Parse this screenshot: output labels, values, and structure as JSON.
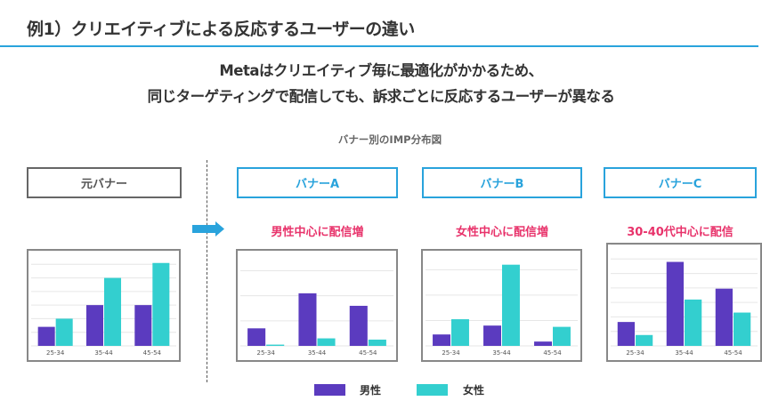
{
  "title": "例1）クリエイティブによる反応するユーザーの違い",
  "subtitle_lines": [
    "Metaはクリエイティブ毎に最適化がかかるため、",
    "同じターゲティングで配信しても、訴求ごとに反応するユーザーが異なる"
  ],
  "caption": "バナー別のIMP分布図",
  "banners": [
    {
      "label": "元バナー",
      "note": ""
    },
    {
      "label": "バナーA",
      "note": "男性中心に配信増"
    },
    {
      "label": "バナーB",
      "note": "女性中心に配信増"
    },
    {
      "label": "バナーC",
      "note": "30-40代中心に配信"
    }
  ],
  "icons": {
    "arrow": "arrow-right-icon"
  },
  "colors": {
    "male": "#5b3bbf",
    "female": "#33cfcf",
    "accent": "#29a3dc",
    "highlight": "#e8336b"
  },
  "legend": [
    {
      "label": "男性",
      "color": "#5b3bbf"
    },
    {
      "label": "女性",
      "color": "#33cfcf"
    }
  ],
  "chart_data": [
    {
      "type": "bar",
      "name": "元バナー",
      "categories": [
        "25-34",
        "35-44",
        "45-54"
      ],
      "ylim": [
        0,
        7
      ],
      "grid": true,
      "series": [
        {
          "name": "男性",
          "values": [
            1.4,
            3.0,
            3.0
          ]
        },
        {
          "name": "女性",
          "values": [
            2.0,
            5.0,
            6.1
          ]
        }
      ]
    },
    {
      "type": "bar",
      "name": "バナーA",
      "categories": [
        "25-34",
        "35-44",
        "45-54"
      ],
      "ylim": [
        0,
        3.8
      ],
      "grid": true,
      "series": [
        {
          "name": "男性",
          "values": [
            0.7,
            2.1,
            1.6
          ]
        },
        {
          "name": "女性",
          "values": [
            0.05,
            0.3,
            0.25
          ]
        }
      ]
    },
    {
      "type": "bar",
      "name": "バナーB",
      "categories": [
        "25-34",
        "35-44",
        "45-54"
      ],
      "ylim": [
        0,
        3.75
      ],
      "grid": true,
      "series": [
        {
          "name": "男性",
          "values": [
            0.45,
            0.8,
            0.17
          ]
        },
        {
          "name": "女性",
          "values": [
            1.05,
            3.2,
            0.75
          ]
        }
      ]
    },
    {
      "type": "bar",
      "name": "バナーC",
      "categories": [
        "25-34",
        "35-44",
        "45-54"
      ],
      "ylim": [
        0,
        7
      ],
      "grid": true,
      "series": [
        {
          "name": "男性",
          "values": [
            1.65,
            5.8,
            3.95
          ]
        },
        {
          "name": "女性",
          "values": [
            0.75,
            3.2,
            2.3
          ]
        }
      ]
    }
  ]
}
